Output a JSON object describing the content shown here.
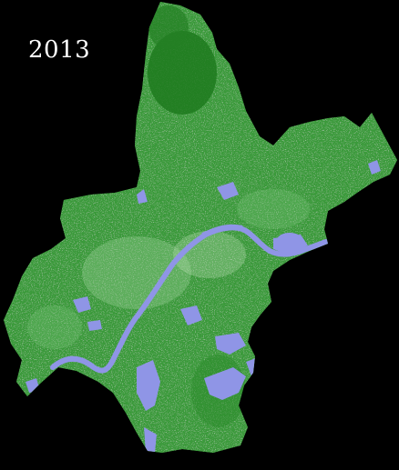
{
  "map": {
    "year_label": "2013",
    "colors": {
      "background": "#000000",
      "vegetation_dark": "#1f7a1f",
      "vegetation": "#3a9a3a",
      "vegetation_light": "#7cc87c",
      "urban": "#d7ecd2",
      "water": "#8f95e6",
      "label": "#ffffff"
    },
    "legend_visible": false
  }
}
